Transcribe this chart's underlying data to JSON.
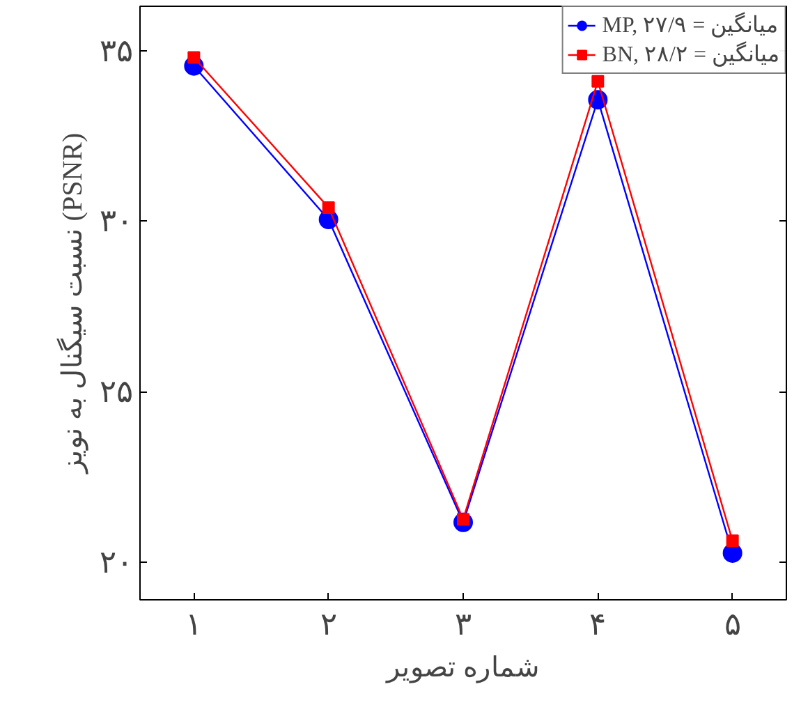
{
  "chart_data": {
    "type": "line",
    "xlabel": "شماره تصویر",
    "ylabel": "نسبت سیگنال به نویز (PSNR)",
    "x": [
      1,
      2,
      3,
      4,
      5
    ],
    "xlim": [
      0.6,
      5.4
    ],
    "xticks": [
      {
        "value": 1,
        "label": "۱"
      },
      {
        "value": 2,
        "label": "۲"
      },
      {
        "value": 3,
        "label": "۳"
      },
      {
        "value": 4,
        "label": "۴"
      },
      {
        "value": 5,
        "label": "۵"
      }
    ],
    "ylim": [
      18.9,
      36.3
    ],
    "yticks": [
      {
        "value": 20,
        "label": "۲۰"
      },
      {
        "value": 25,
        "label": "۲۵"
      },
      {
        "value": 30,
        "label": "۳۰"
      },
      {
        "value": 35,
        "label": "۳۵"
      }
    ],
    "series": [
      {
        "name": "MP, ۲۷/۹ = میانگین",
        "color": "#0000ff",
        "marker": "circle",
        "values": [
          34.55,
          30.05,
          21.17,
          33.56,
          20.27
        ]
      },
      {
        "name": "BN, ۲۸/۲ = میانگین",
        "color": "#ff0000",
        "marker": "square",
        "values": [
          34.8,
          30.4,
          21.26,
          34.1,
          20.63
        ]
      }
    ],
    "grid": false,
    "legend": "top right",
    "line_style": "solid"
  }
}
